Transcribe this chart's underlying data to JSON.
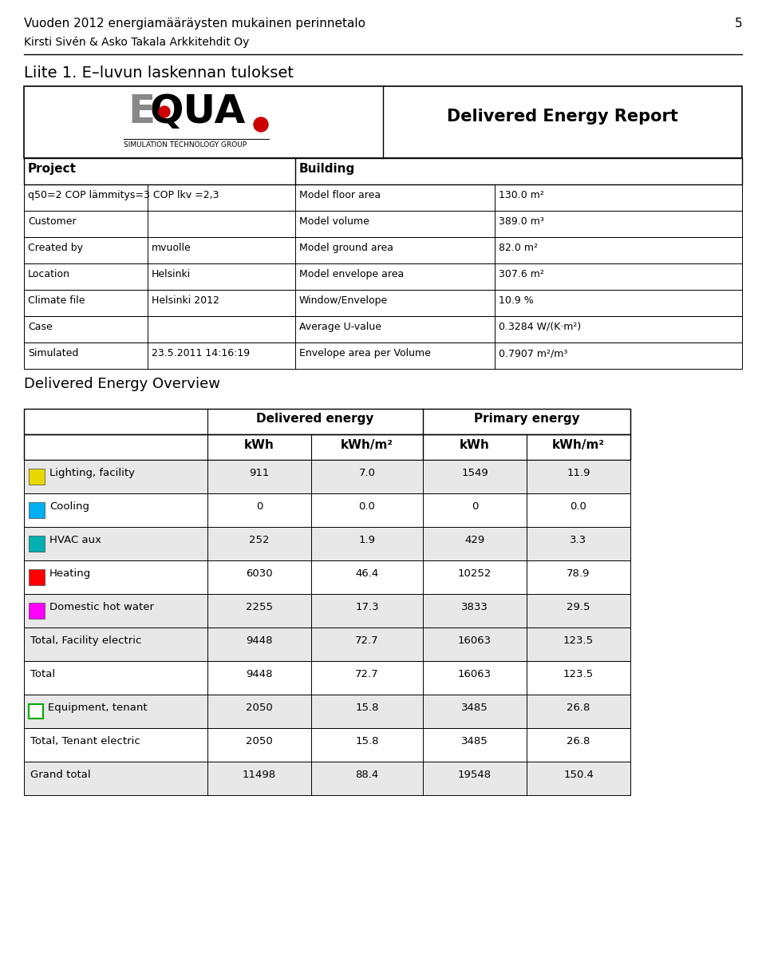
{
  "title_line1": "Vuoden 2012 energiamääräysten mukainen perinnetalo",
  "title_line2": "Kirsti Sivén & Asko Takala Arkkitehdit Oy",
  "page_number": "5",
  "section_title": "Liite 1. E–luvun laskennan tulokset",
  "report_title": "Delivered Energy Report",
  "equa_sub": "SIMULATION TECHNOLOGY GROUP",
  "project_label": "Project",
  "building_label": "Building",
  "project_rows": [
    [
      "q50=2 COP lämmitys=3 COP lkv =2,3",
      "",
      "Model floor area",
      "130.0 m²"
    ],
    [
      "Customer",
      "",
      "Model volume",
      "389.0 m³"
    ],
    [
      "Created by",
      "mvuolle",
      "Model ground area",
      "82.0 m²"
    ],
    [
      "Location",
      "Helsinki",
      "Model envelope area",
      "307.6 m²"
    ],
    [
      "Climate file",
      "Helsinki 2012",
      "Window/Envelope",
      "10.9 %"
    ],
    [
      "Case",
      "",
      "Average U-value",
      "0.3284 W/(K·m²)"
    ],
    [
      "Simulated",
      "23.5.2011 14:16:19",
      "Envelope area per Volume",
      "0.7907 m²/m³"
    ]
  ],
  "overview_title": "Delivered Energy Overview",
  "energy_rows": [
    {
      "color": "#e8d800",
      "label": "Lighting, facility",
      "de_kwh": "911",
      "de_kwh_m2": "7.0",
      "pe_kwh": "1549",
      "pe_kwh_m2": "11.9"
    },
    {
      "color": "#00b0f0",
      "label": "Cooling",
      "de_kwh": "0",
      "de_kwh_m2": "0.0",
      "pe_kwh": "0",
      "pe_kwh_m2": "0.0"
    },
    {
      "color": "#00b0b0",
      "label": "HVAC aux",
      "de_kwh": "252",
      "de_kwh_m2": "1.9",
      "pe_kwh": "429",
      "pe_kwh_m2": "3.3"
    },
    {
      "color": "#ff0000",
      "label": "Heating",
      "de_kwh": "6030",
      "de_kwh_m2": "46.4",
      "pe_kwh": "10252",
      "pe_kwh_m2": "78.9"
    },
    {
      "color": "#ff00ff",
      "label": "Domestic hot water",
      "de_kwh": "2255",
      "de_kwh_m2": "17.3",
      "pe_kwh": "3833",
      "pe_kwh_m2": "29.5"
    }
  ],
  "total_rows": [
    {
      "label": "Total, Facility electric",
      "de_kwh": "9448",
      "de_kwh_m2": "72.7",
      "pe_kwh": "16063",
      "pe_kwh_m2": "123.5",
      "has_box": false,
      "bg": "#e8e8e8"
    },
    {
      "label": "Total",
      "de_kwh": "9448",
      "de_kwh_m2": "72.7",
      "pe_kwh": "16063",
      "pe_kwh_m2": "123.5",
      "has_box": false,
      "bg": "white"
    },
    {
      "label": "Equipment, tenant",
      "de_kwh": "2050",
      "de_kwh_m2": "15.8",
      "pe_kwh": "3485",
      "pe_kwh_m2": "26.8",
      "has_box": true,
      "box_color": "#00aa00",
      "bg": "#e8e8e8"
    },
    {
      "label": "Total, Tenant electric",
      "de_kwh": "2050",
      "de_kwh_m2": "15.8",
      "pe_kwh": "3485",
      "pe_kwh_m2": "26.8",
      "has_box": false,
      "bg": "white"
    },
    {
      "label": "Grand total",
      "de_kwh": "11498",
      "de_kwh_m2": "88.4",
      "pe_kwh": "19548",
      "pe_kwh_m2": "150.4",
      "has_box": false,
      "bg": "#e8e8e8"
    }
  ]
}
